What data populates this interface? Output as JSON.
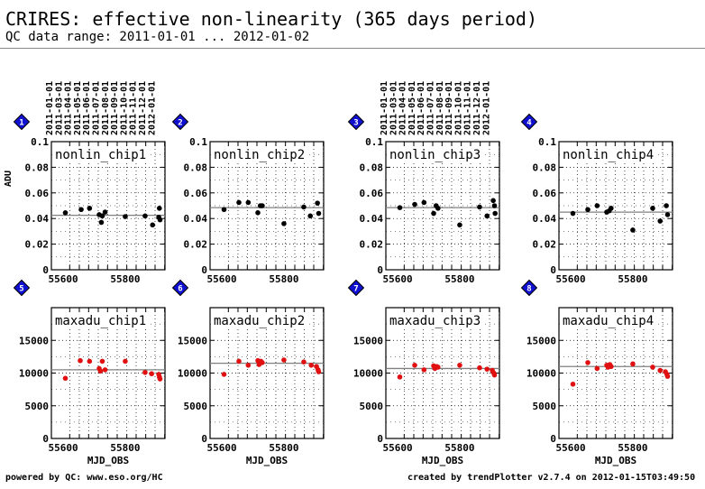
{
  "header": {
    "title": "CRIRES: effective non-linearity (365 days period)",
    "subtitle": "QC data range: 2011-01-01 ... 2012-01-02"
  },
  "footer": {
    "left": "powered by QC: www.eso.org/HC",
    "right": "created by trendPlotter v2.7.4 on 2012-01-15T03:49:50"
  },
  "colors": {
    "marker_black": "#000000",
    "marker_red": "#e01010",
    "badge_fill": "#1010d0",
    "badge_border": "#000000",
    "reference_line": "#808080"
  },
  "date_ticks": [
    "2011-01-01",
    "2011-03-01",
    "2011-04-01",
    "2011-05-01",
    "2011-06-01",
    "2011-07-01",
    "2011-08-01",
    "2011-09-01",
    "2011-10-01",
    "2011-11-01",
    "2011-12-01",
    "2012-01-01"
  ],
  "date_tick_mjd": [
    55562,
    55621,
    55652,
    55682,
    55713,
    55743,
    55774,
    55805,
    55835,
    55866,
    55896,
    55927
  ],
  "chart_data": [
    {
      "type": "scatter",
      "badge": "1",
      "label": "nonlin_chip1",
      "marker_color": "#000000",
      "ylabel": "ADU",
      "xlabel": "",
      "xlim": [
        55562,
        55928
      ],
      "ylim": [
        0,
        0.1
      ],
      "x_ticks": [
        55600,
        55800
      ],
      "y_ticks": [
        0,
        0.02,
        0.04,
        0.06,
        0.08,
        0.1
      ],
      "y_tick_labels": [
        "0",
        "0.02",
        "0.04",
        "0.06",
        "0.08",
        "0.1"
      ],
      "reference": 0.0425,
      "x": [
        55607,
        55658,
        55685,
        55716,
        55723,
        55726,
        55735,
        55800,
        55864,
        55888,
        55908,
        55910,
        55912
      ],
      "y": [
        0.0445,
        0.047,
        0.048,
        0.043,
        0.037,
        0.042,
        0.045,
        0.0415,
        0.042,
        0.035,
        0.041,
        0.048,
        0.039
      ]
    },
    {
      "type": "scatter",
      "badge": "2",
      "label": "nonlin_chip2",
      "marker_color": "#000000",
      "ylabel": "",
      "xlabel": "",
      "xlim": [
        55562,
        55928
      ],
      "ylim": [
        0,
        0.1
      ],
      "x_ticks": [
        55600,
        55800
      ],
      "y_ticks": [
        0,
        0.02,
        0.04,
        0.06,
        0.08,
        0.1
      ],
      "y_tick_labels": [
        "0",
        "0.02",
        "0.04",
        "0.06",
        "0.08",
        "0.1"
      ],
      "reference": 0.0485,
      "x": [
        55607,
        55655,
        55685,
        55716,
        55724,
        55730,
        55800,
        55864,
        55885,
        55908,
        55912
      ],
      "y": [
        0.047,
        0.0525,
        0.0525,
        0.0445,
        0.05,
        0.05,
        0.036,
        0.049,
        0.042,
        0.052,
        0.044
      ]
    },
    {
      "type": "scatter",
      "badge": "3",
      "label": "nonlin_chip3",
      "marker_color": "#000000",
      "ylabel": "",
      "xlabel": "",
      "xlim": [
        55562,
        55928
      ],
      "ylim": [
        0,
        0.1
      ],
      "x_ticks": [
        55600,
        55800
      ],
      "y_ticks": [
        0,
        0.02,
        0.04,
        0.06,
        0.08,
        0.1
      ],
      "y_tick_labels": [
        "0",
        "0.02",
        "0.04",
        "0.06",
        "0.08",
        "0.1"
      ],
      "reference": 0.0485,
      "x": [
        55607,
        55655,
        55685,
        55716,
        55724,
        55730,
        55800,
        55864,
        55888,
        55908,
        55912,
        55914
      ],
      "y": [
        0.0485,
        0.051,
        0.0525,
        0.044,
        0.05,
        0.048,
        0.035,
        0.049,
        0.042,
        0.054,
        0.05,
        0.044
      ]
    },
    {
      "type": "scatter",
      "badge": "4",
      "label": "nonlin_chip4",
      "marker_color": "#000000",
      "ylabel": "",
      "xlabel": "",
      "xlim": [
        55562,
        55928
      ],
      "ylim": [
        0,
        0.1
      ],
      "x_ticks": [
        55600,
        55800
      ],
      "y_ticks": [
        0,
        0.02,
        0.04,
        0.06,
        0.08,
        0.1
      ],
      "y_tick_labels": [
        "0",
        "0.02",
        "0.04",
        "0.06",
        "0.08",
        "0.1"
      ],
      "reference": 0.045,
      "x": [
        55607,
        55655,
        55685,
        55716,
        55724,
        55730,
        55800,
        55864,
        55888,
        55908,
        55912
      ],
      "y": [
        0.044,
        0.047,
        0.05,
        0.045,
        0.046,
        0.048,
        0.031,
        0.048,
        0.038,
        0.05,
        0.043
      ]
    },
    {
      "type": "scatter",
      "badge": "5",
      "label": "maxadu_chip1",
      "marker_color": "#e01010",
      "ylabel": "",
      "xlabel": "MJD_OBS",
      "xlim": [
        55562,
        55928
      ],
      "ylim": [
        0,
        20000
      ],
      "x_ticks": [
        55600,
        55800
      ],
      "y_ticks": [
        0,
        5000,
        10000,
        15000
      ],
      "y_tick_labels": [
        "0",
        "5000",
        "10000",
        "15000"
      ],
      "reference": 10500,
      "x": [
        55607,
        55655,
        55685,
        55716,
        55720,
        55726,
        55735,
        55800,
        55864,
        55885,
        55908,
        55910,
        55912
      ],
      "y": [
        9200,
        11900,
        11800,
        10700,
        10300,
        11800,
        10500,
        11800,
        10100,
        9900,
        9800,
        9400,
        9100
      ]
    },
    {
      "type": "scatter",
      "badge": "6",
      "label": "maxadu_chip2",
      "marker_color": "#e01010",
      "ylabel": "",
      "xlabel": "MJD_OBS",
      "xlim": [
        55562,
        55928
      ],
      "ylim": [
        0,
        20000
      ],
      "x_ticks": [
        55600,
        55800
      ],
      "y_ticks": [
        0,
        5000,
        10000,
        15000
      ],
      "y_tick_labels": [
        "0",
        "5000",
        "10000",
        "15000"
      ],
      "reference": 11500,
      "x": [
        55607,
        55655,
        55685,
        55716,
        55720,
        55726,
        55730,
        55800,
        55864,
        55888,
        55905,
        55910,
        55912
      ],
      "y": [
        9800,
        11800,
        11200,
        11900,
        11300,
        11800,
        11600,
        12000,
        11700,
        11200,
        11000,
        10500,
        10200
      ]
    },
    {
      "type": "scatter",
      "badge": "7",
      "label": "maxadu_chip3",
      "marker_color": "#e01010",
      "ylabel": "",
      "xlabel": "MJD_OBS",
      "xlim": [
        55562,
        55928
      ],
      "ylim": [
        0,
        20000
      ],
      "x_ticks": [
        55600,
        55800
      ],
      "y_ticks": [
        0,
        5000,
        10000,
        15000
      ],
      "y_tick_labels": [
        "0",
        "5000",
        "10000",
        "15000"
      ],
      "reference": 10700,
      "x": [
        55607,
        55655,
        55685,
        55716,
        55720,
        55726,
        55730,
        55800,
        55864,
        55888,
        55905,
        55910,
        55912
      ],
      "y": [
        9400,
        11200,
        10500,
        11100,
        10700,
        11000,
        10900,
        11200,
        10800,
        10600,
        10400,
        10000,
        9700
      ]
    },
    {
      "type": "scatter",
      "badge": "8",
      "label": "maxadu_chip4",
      "marker_color": "#e01010",
      "ylabel": "",
      "xlabel": "MJD_OBS",
      "xlim": [
        55562,
        55928
      ],
      "ylim": [
        0,
        20000
      ],
      "x_ticks": [
        55600,
        55800
      ],
      "y_ticks": [
        0,
        5000,
        10000,
        15000
      ],
      "y_tick_labels": [
        "0",
        "5000",
        "10000",
        "15000"
      ],
      "reference": 11000,
      "x": [
        55607,
        55655,
        55685,
        55716,
        55720,
        55726,
        55730,
        55800,
        55864,
        55888,
        55905,
        55910,
        55912
      ],
      "y": [
        8300,
        11600,
        10700,
        11200,
        10900,
        11300,
        11000,
        11400,
        10900,
        10400,
        10200,
        9800,
        9500
      ]
    }
  ]
}
